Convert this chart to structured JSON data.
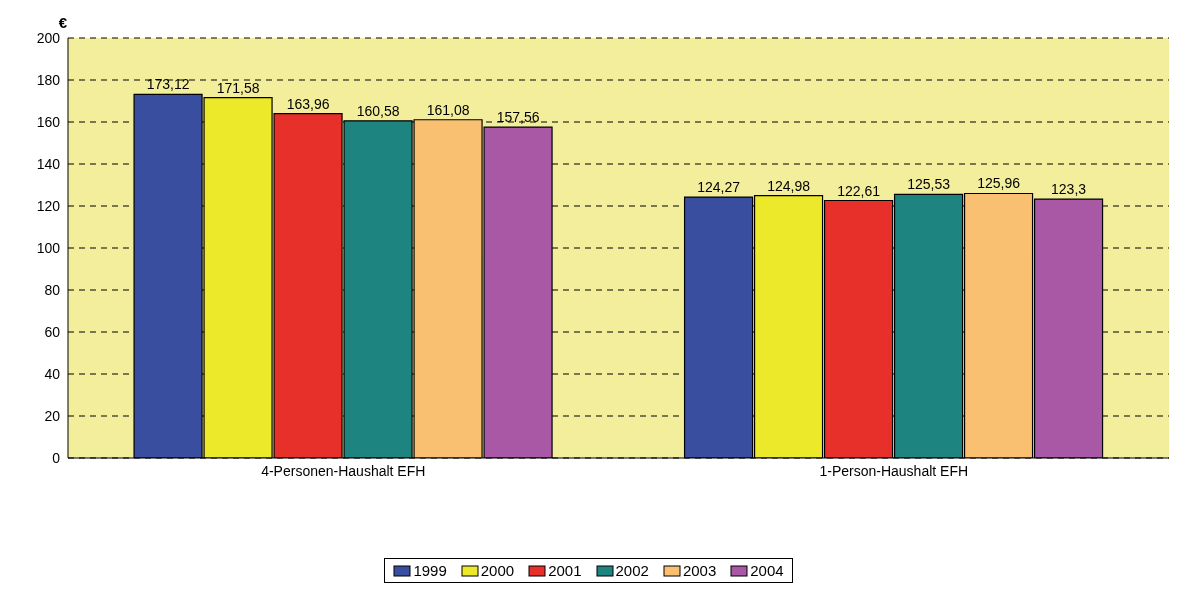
{
  "chart_data": {
    "type": "bar",
    "ylabel": "€",
    "categories": [
      "4-Personen-Haushalt EFH",
      "1-Person-Haushalt EFH"
    ],
    "series": [
      {
        "name": "1999",
        "color": "#3a4ea0",
        "values": [
          173.12,
          124.27
        ],
        "value_labels": [
          "173,12",
          "124,27"
        ]
      },
      {
        "name": "2000",
        "color": "#ece82a",
        "values": [
          171.58,
          124.98
        ],
        "value_labels": [
          "171,58",
          "124,98"
        ]
      },
      {
        "name": "2001",
        "color": "#e8302a",
        "values": [
          163.96,
          122.61
        ],
        "value_labels": [
          "163,96",
          "122,61"
        ]
      },
      {
        "name": "2002",
        "color": "#1e8480",
        "values": [
          160.58,
          125.53
        ],
        "value_labels": [
          "160,58",
          "125,53"
        ]
      },
      {
        "name": "2003",
        "color": "#f8c070",
        "values": [
          161.08,
          125.96
        ],
        "value_labels": [
          "161,08",
          "125,96"
        ]
      },
      {
        "name": "2004",
        "color": "#a858a4",
        "values": [
          157.56,
          123.3
        ],
        "value_labels": [
          "157,56",
          "123,3"
        ]
      }
    ],
    "ylim": [
      0,
      200
    ],
    "yticks": [
      0,
      20,
      40,
      60,
      80,
      100,
      120,
      140,
      160,
      180,
      200
    ],
    "grid": "y",
    "legend": "bottom"
  }
}
